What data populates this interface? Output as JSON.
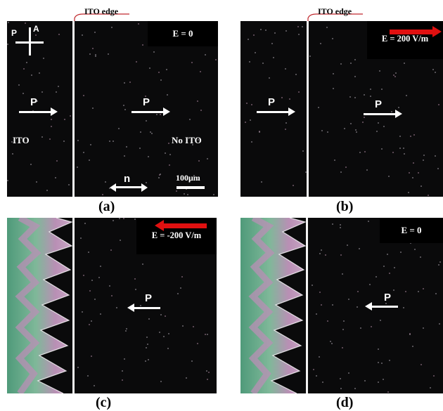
{
  "annotation": {
    "ito_edge": "ITO edge"
  },
  "panels": {
    "a": {
      "caption": "(a)",
      "field": "E = 0",
      "p": "P",
      "ito": "ITO",
      "no_ito": "No ITO",
      "n": "n",
      "scale": "100μm",
      "polarizer": "P",
      "analyzer": "A"
    },
    "b": {
      "caption": "(b)",
      "field": "E = 200 V/m",
      "p": "P"
    },
    "c": {
      "caption": "(c)",
      "field": "E = -200 V/m",
      "p": "P"
    },
    "d": {
      "caption": "(d)",
      "field": "E = 0",
      "p": "P"
    }
  },
  "colors": {
    "field_arrow": "#e01010",
    "ito_edge_line": "#c0282d",
    "domain_green": "#4f9a7a",
    "domain_pink": "#b98fb5"
  }
}
